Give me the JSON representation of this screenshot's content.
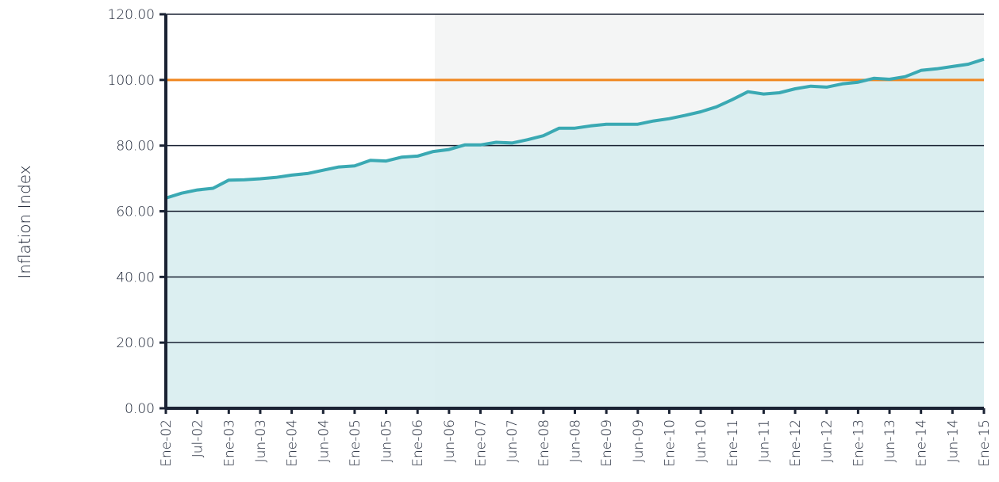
{
  "chart_data": {
    "type": "line",
    "y_label": "Inflation Index",
    "categories": [
      "Ene-02",
      null,
      "Jul-02",
      null,
      "Ene-03",
      null,
      "Jun-03",
      null,
      "Ene-04",
      null,
      "Jun-04",
      null,
      "Ene-05",
      null,
      "Jun-05",
      null,
      "Ene-06",
      null,
      "Jun-06",
      null,
      "Ene-07",
      null,
      "Jun-07",
      null,
      "Ene-08",
      null,
      "Jun-08",
      null,
      "Ene-09",
      null,
      "Jun-09",
      null,
      "Ene-10",
      null,
      "Jun-10",
      null,
      "Ene-11",
      null,
      "Jun-11",
      null,
      "Ene-12",
      null,
      "Jun-12",
      null,
      "Ene-13",
      null,
      "Jun-13",
      null,
      "Ene-14",
      null,
      "Jun-14",
      null,
      "Ene-15"
    ],
    "series": [
      {
        "name": "Inflation Index",
        "color": "#3aa9b3",
        "fill": "#d6ecef",
        "values": [
          64.0,
          65.5,
          66.5,
          67.0,
          69.5,
          69.6,
          69.9,
          70.3,
          71.0,
          71.5,
          72.5,
          73.5,
          73.8,
          75.5,
          75.3,
          76.5,
          76.8,
          78.2,
          78.8,
          80.2,
          80.2,
          81.0,
          80.8,
          81.8,
          83.0,
          85.3,
          85.3,
          86.0,
          86.5,
          86.5,
          86.5,
          87.5,
          88.2,
          89.2,
          90.3,
          91.8,
          94.0,
          96.4,
          95.7,
          96.1,
          97.3,
          98.1,
          97.8,
          98.8,
          99.3,
          100.5,
          100.2,
          101.0,
          102.9,
          103.4,
          104.1,
          104.8,
          106.3
        ]
      }
    ],
    "reference_line": {
      "value": 100,
      "color": "#f0861f"
    },
    "ylim": [
      0,
      120
    ],
    "yticks": [
      {
        "value": 0,
        "label": "0.00"
      },
      {
        "value": 20,
        "label": "20.00"
      },
      {
        "value": 40,
        "label": "40.00"
      },
      {
        "value": 60,
        "label": "60.00"
      },
      {
        "value": 80,
        "label": "80.00"
      },
      {
        "value": 100,
        "label": "100.00"
      },
      {
        "value": 120,
        "label": "120.00"
      }
    ],
    "grid": true
  }
}
